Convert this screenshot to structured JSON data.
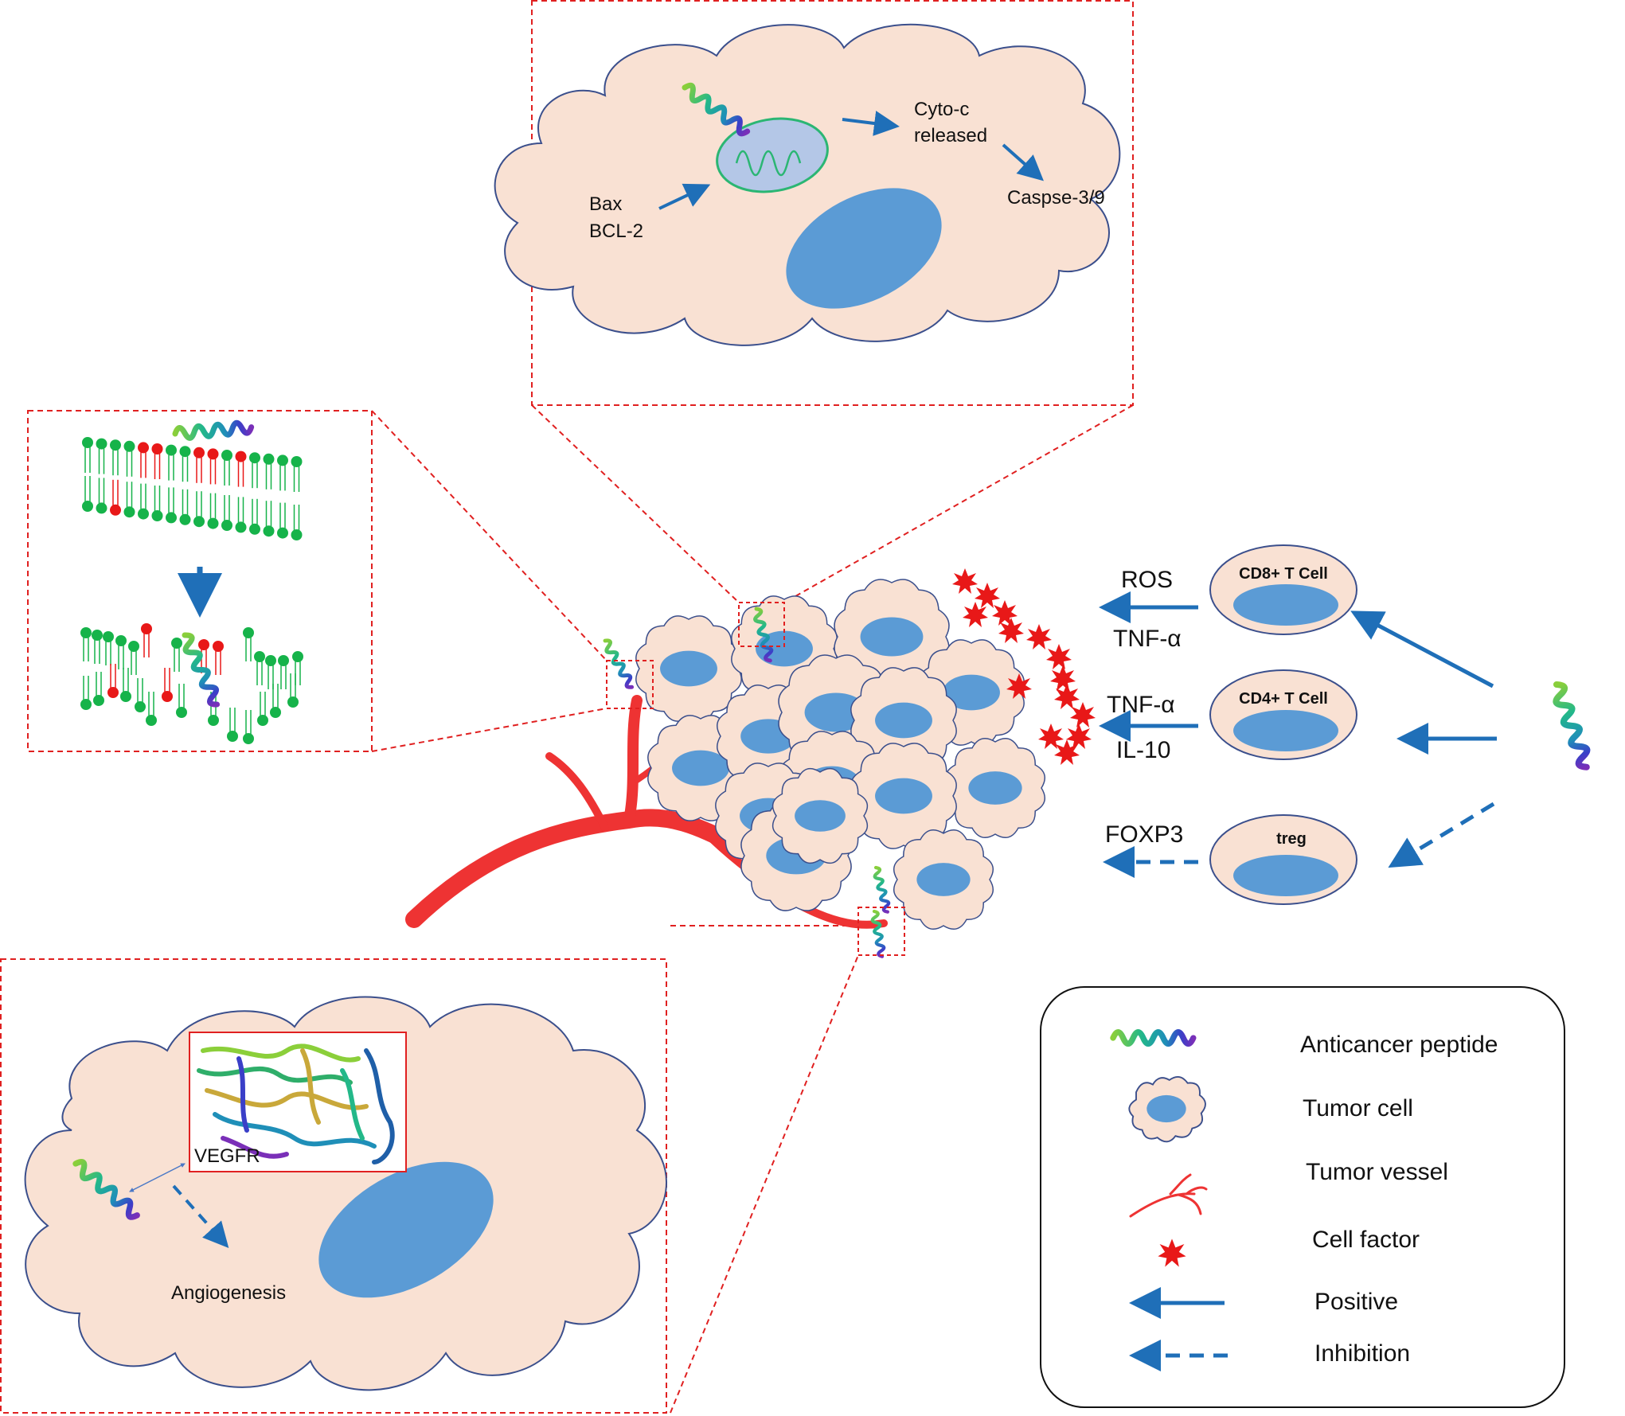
{
  "apoptosis": {
    "bax": "Bax",
    "bcl2": "BCL-2",
    "cyto_line1": "Cyto-c",
    "cyto_line2": "released",
    "caspase": "Caspse-3/9"
  },
  "angiogenesis": {
    "vegfr": "VEGFR",
    "angiogenesis": "Angiogenesis"
  },
  "immune": {
    "ros": "ROS",
    "tnf_cd8": "TNF-α",
    "tnf_cd4": "TNF-α",
    "il10": "IL-10",
    "foxp3": "FOXP3",
    "cd8_cell": "CD8+ T Cell",
    "cd4_cell": "CD4+ T Cell",
    "treg_cell": "treg"
  },
  "legend": {
    "items": [
      {
        "icon": "anticancer-peptide-icon",
        "label": "Anticancer peptide"
      },
      {
        "icon": "tumor-cell-icon",
        "label": "Tumor cell"
      },
      {
        "icon": "tumor-vessel-icon",
        "label": "Tumor vessel"
      },
      {
        "icon": "cell-factor-icon",
        "label": "Cell factor"
      },
      {
        "icon": "positive-arrow-icon",
        "label": "Positive"
      },
      {
        "icon": "inhibition-arrow-icon",
        "label": "Inhibition"
      }
    ]
  },
  "colors": {
    "cell_fill": "#f9e1d3",
    "cell_outline": "#3b4f8c",
    "nucleus": "#5b9bd5",
    "arrow": "#1f6fb8",
    "vessel": "#ee3333",
    "zoom_box": "#e02020",
    "lipid_green": "#16b34a",
    "lipid_red": "#e81818",
    "mitochondria": "#b4c7e7",
    "mito_outline": "#2bb673"
  }
}
